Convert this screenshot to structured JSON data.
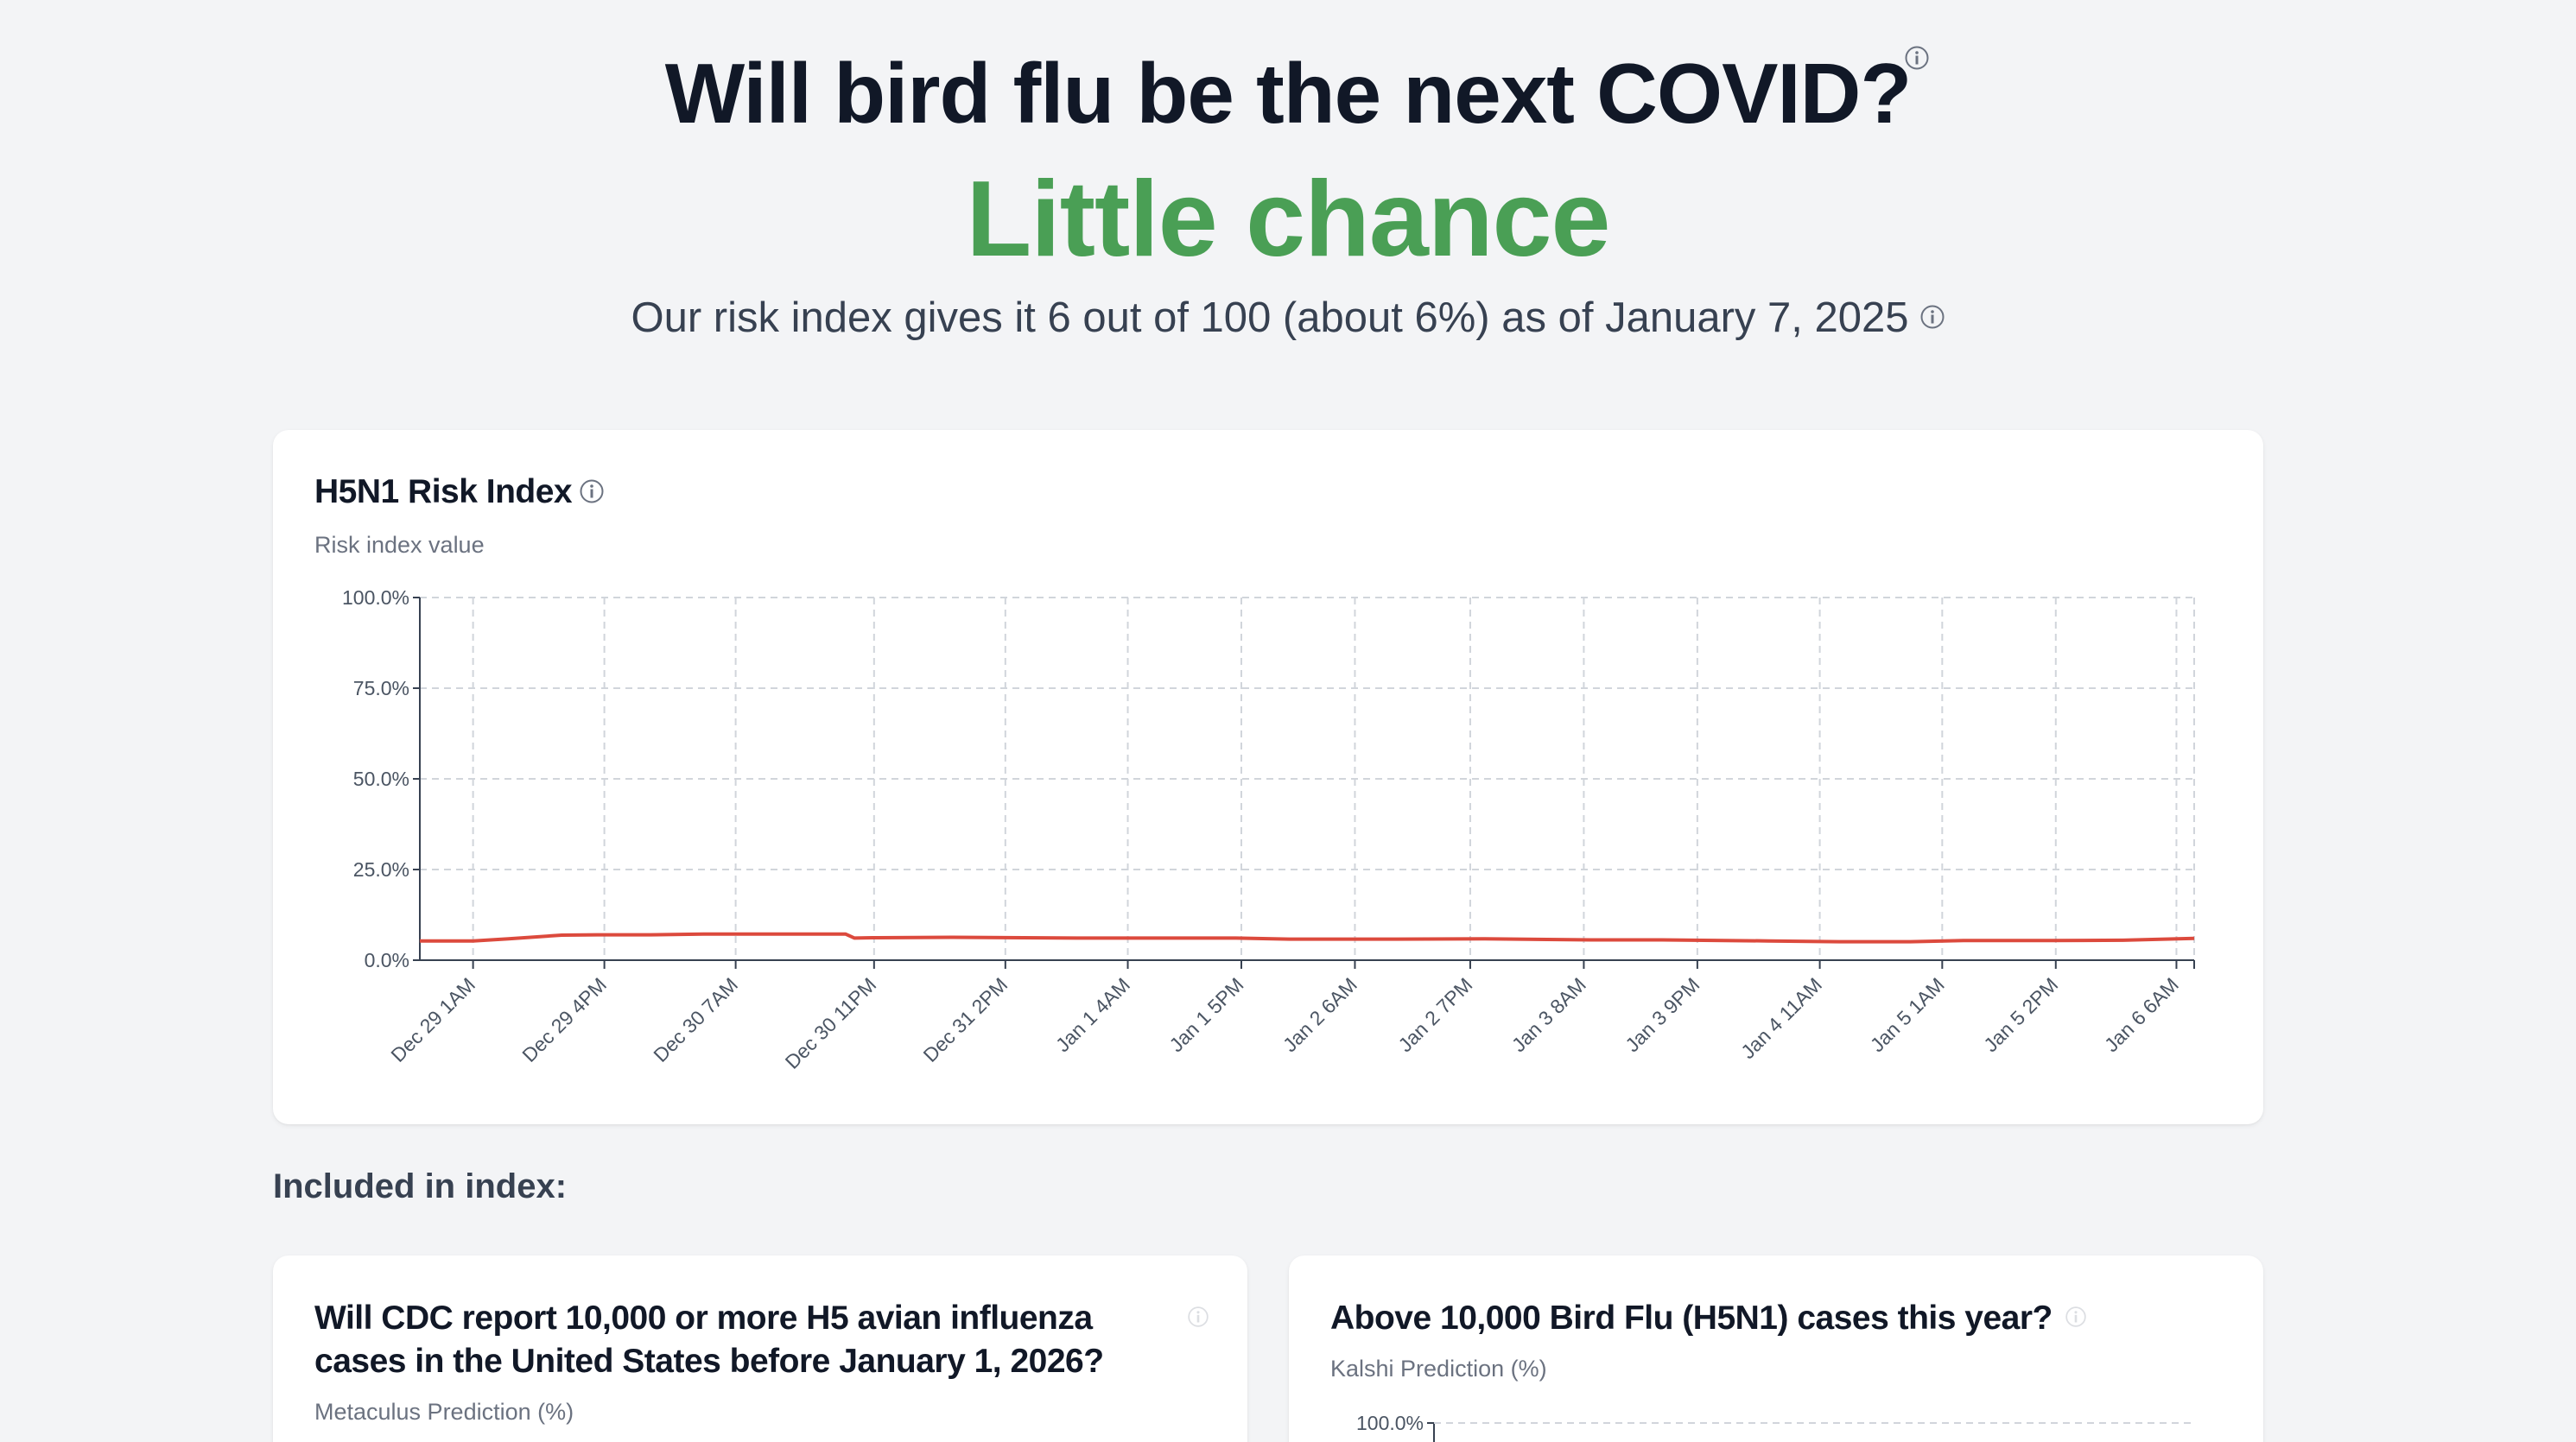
{
  "hero": {
    "question": "Will bird flu be the next COVID?",
    "verdict": "Little chance",
    "verdict_color": "#4a9f55",
    "subtitle": "Our risk index gives it 6 out of 100 (about 6%) as of January 7, 2025",
    "question_info_icon": "info-icon",
    "subtitle_info_icon": "info-icon"
  },
  "main_card": {
    "title": "H5N1 Risk Index",
    "title_info_icon": "info-icon",
    "subtitle": "Risk index value"
  },
  "chart_data": {
    "type": "line",
    "title": "H5N1 Risk Index",
    "ylabel": "Risk index value",
    "ylim": [
      0,
      100
    ],
    "y_ticks": [
      "0.0%",
      "25.0%",
      "50.0%",
      "75.0%",
      "100.0%"
    ],
    "y_tick_values": [
      0,
      25,
      50,
      75,
      100
    ],
    "x_ticks": [
      "Dec 29 1AM",
      "Dec 29 4PM",
      "Dec 30 7AM",
      "Dec 30 11PM",
      "Dec 31 2PM",
      "Jan 1 4AM",
      "Jan 1 5PM",
      "Jan 2 6AM",
      "Jan 2 7PM",
      "Jan 3 8AM",
      "Jan 3 9PM",
      "Jan 4 11AM",
      "Jan 5 1AM",
      "Jan 5 2PM",
      "Jan 6 6AM"
    ],
    "grid": true,
    "line_color": "#dc4a3d",
    "series": [
      {
        "values": [
          [
            0.0,
            5.3
          ],
          [
            0.03,
            5.3
          ],
          [
            0.05,
            5.9
          ],
          [
            0.08,
            6.9
          ],
          [
            0.1,
            7.0
          ],
          [
            0.13,
            7.0
          ],
          [
            0.16,
            7.2
          ],
          [
            0.2,
            7.2
          ],
          [
            0.24,
            7.2
          ],
          [
            0.245,
            6.1
          ],
          [
            0.255,
            6.2
          ],
          [
            0.3,
            6.3
          ],
          [
            0.37,
            6.1
          ],
          [
            0.46,
            6.1
          ],
          [
            0.49,
            5.8
          ],
          [
            0.55,
            5.8
          ],
          [
            0.6,
            5.9
          ],
          [
            0.66,
            5.6
          ],
          [
            0.7,
            5.6
          ],
          [
            0.76,
            5.3
          ],
          [
            0.8,
            5.1
          ],
          [
            0.84,
            5.1
          ],
          [
            0.87,
            5.4
          ],
          [
            0.92,
            5.4
          ],
          [
            0.96,
            5.5
          ],
          [
            1.0,
            6.0
          ]
        ]
      }
    ]
  },
  "included": {
    "heading": "Included in index:"
  },
  "cards": [
    {
      "title": "Will CDC report 10,000 or more H5 avian influenza cases in the United States before January 1, 2026?",
      "subtitle": "Metaculus Prediction (%)",
      "icon": "info-icon"
    },
    {
      "title": "Above 10,000 Bird Flu (H5N1) cases this year?",
      "subtitle": "Kalshi Prediction (%)",
      "icon": "info-icon",
      "first_y_tick": "100.0%"
    }
  ]
}
